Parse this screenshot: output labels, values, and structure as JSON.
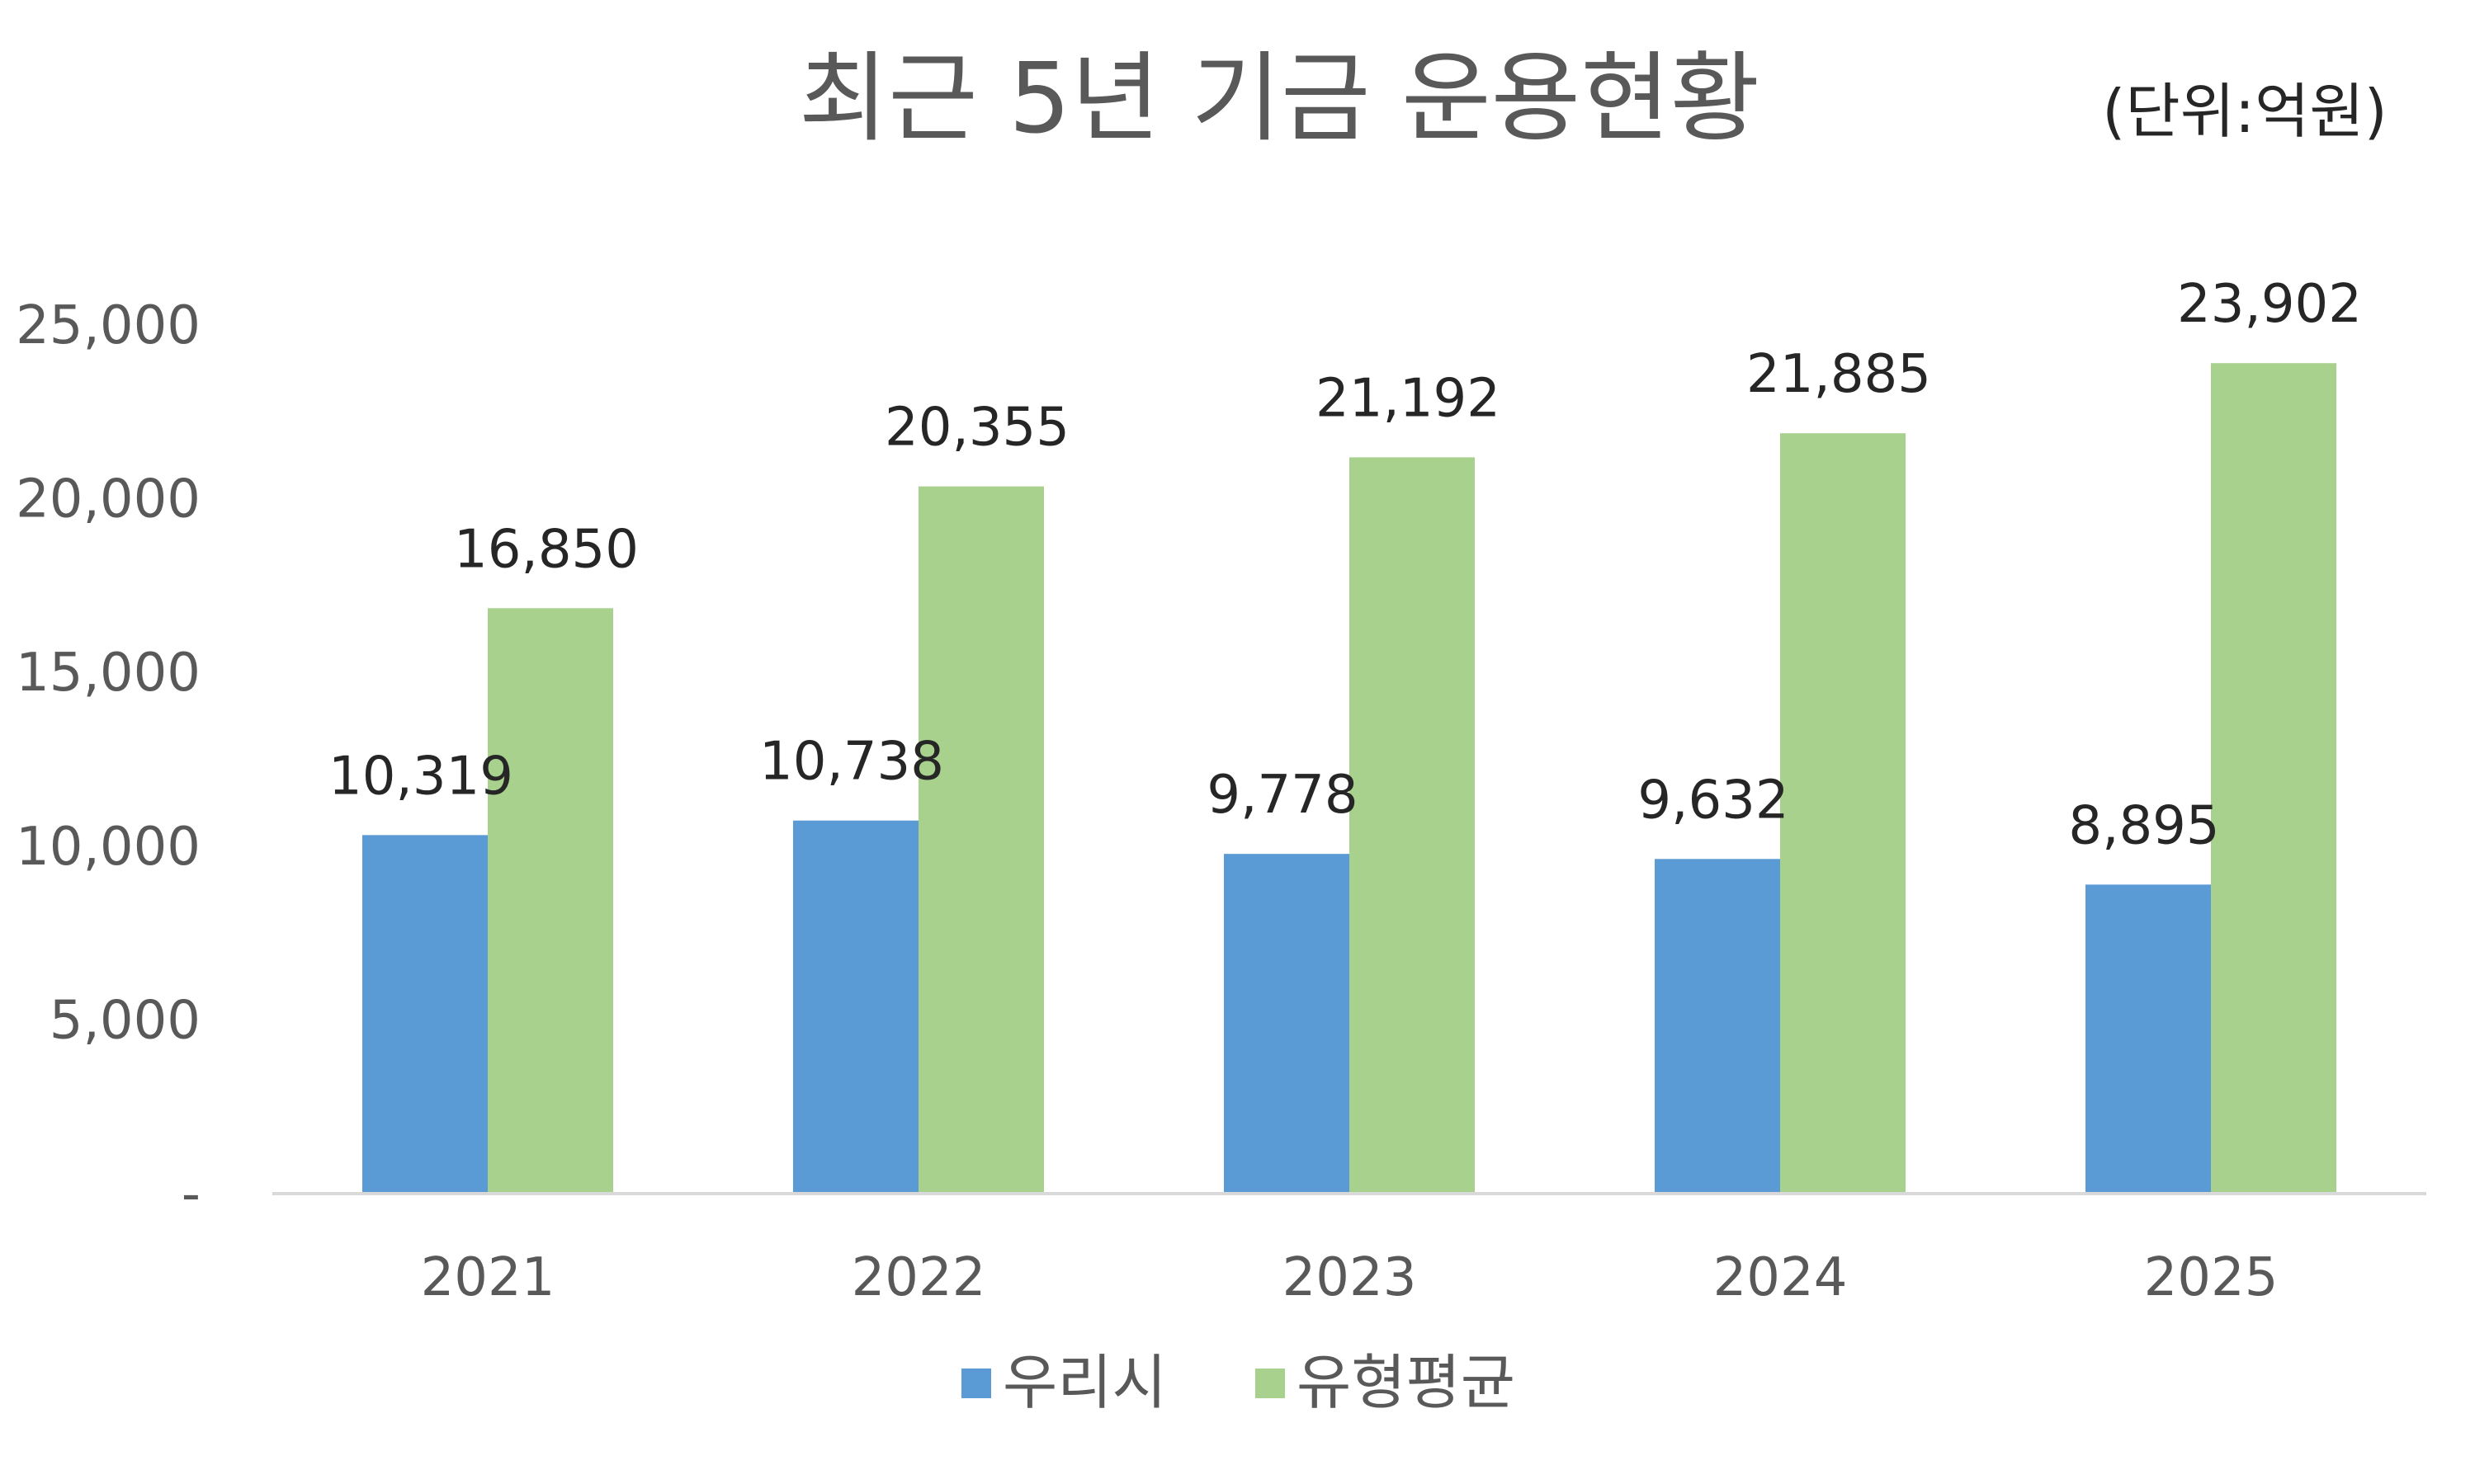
{
  "chart_data": {
    "type": "bar",
    "title": "최근 5년 기금 운용현황",
    "unit_label": "(단위:억원)",
    "categories": [
      "2021",
      "2022",
      "2023",
      "2024",
      "2025"
    ],
    "series": [
      {
        "name": "우리시",
        "color": "#5B9BD5",
        "values": [
          10319,
          10738,
          9778,
          9632,
          8895
        ],
        "labels": [
          "10,319",
          "10,738",
          "9,778",
          "9,632",
          "8,895"
        ]
      },
      {
        "name": "유형평균",
        "color": "#A9D18E",
        "values": [
          16850,
          20355,
          21192,
          21885,
          23902
        ],
        "labels": [
          "16,850",
          "20,355",
          "21,192",
          "21,885",
          "23,902"
        ]
      }
    ],
    "y_ticks": [
      {
        "value": 0,
        "label": "-"
      },
      {
        "value": 5000,
        "label": "5,000"
      },
      {
        "value": 10000,
        "label": "10,000"
      },
      {
        "value": 15000,
        "label": "15,000"
      },
      {
        "value": 20000,
        "label": "20,000"
      },
      {
        "value": 25000,
        "label": "25,000"
      }
    ],
    "ylim": [
      0,
      25000
    ],
    "grid": false,
    "legend_position": "bottom",
    "axis_color": "#D9D9D9"
  }
}
